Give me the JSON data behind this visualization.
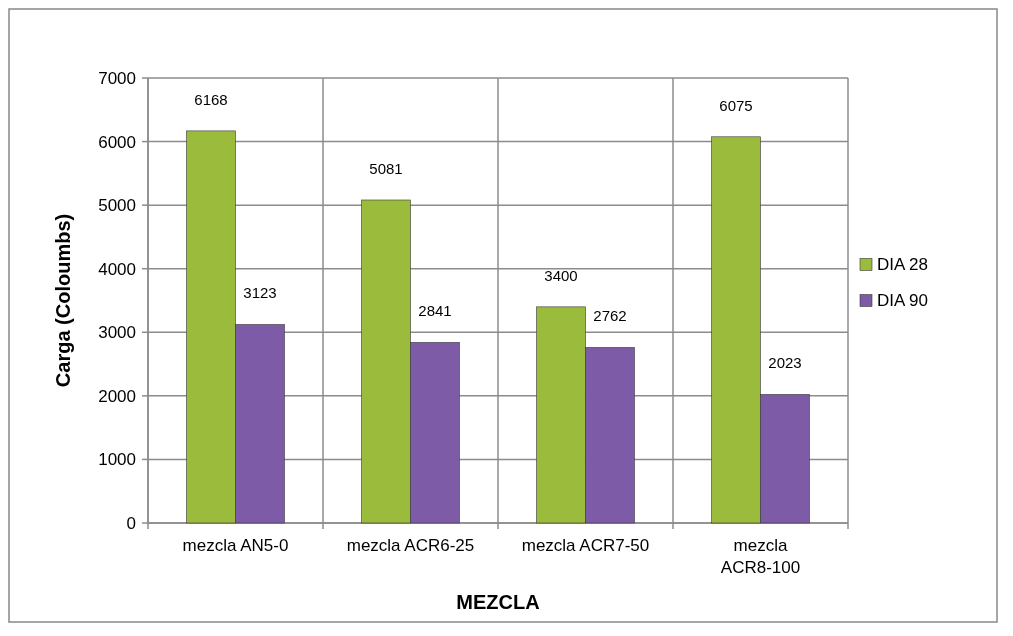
{
  "chart_data": {
    "type": "bar",
    "xlabel": "MEZCLA",
    "ylabel": "Carga (Coloumbs)",
    "categories": [
      "mezcla AN5-0",
      "mezcla ACR6-25",
      "mezcla ACR7-50",
      "mezcla ACR8-100"
    ],
    "series": [
      {
        "name": "DIA 28",
        "color": "#9bbb3c",
        "values": [
          6168,
          5081,
          3400,
          6075
        ]
      },
      {
        "name": "DIA 90",
        "color": "#7d5ba6",
        "values": [
          3123,
          2841,
          2762,
          2023
        ]
      }
    ],
    "ylim": [
      0,
      7000
    ],
    "yticks": [
      0,
      1000,
      2000,
      3000,
      4000,
      5000,
      6000,
      7000
    ],
    "grid": true,
    "legend": "right",
    "data_labels": true
  }
}
